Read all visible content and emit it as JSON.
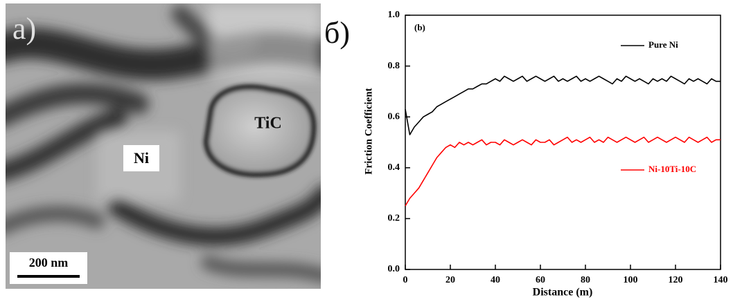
{
  "image_panel": {
    "label": "а)",
    "phase_labels": [
      "Ni",
      "TiC"
    ],
    "scale_bar": "200 nm"
  },
  "chart_panel_label": "б)",
  "chart_data": {
    "type": "line",
    "annotation": "(b)",
    "xlabel": "Distance (m)",
    "ylabel": "Friction Coefficient",
    "xlim": [
      0,
      140
    ],
    "xticks": [
      0,
      20,
      40,
      60,
      80,
      100,
      120,
      140
    ],
    "ylim": [
      0,
      1
    ],
    "yticks": [
      {
        "value": 0,
        "label": "0.0"
      },
      0.2,
      0.4,
      0.6,
      0.8,
      {
        "value": 1,
        "label": "1.0"
      }
    ],
    "x": [
      0,
      2,
      4,
      6,
      8,
      10,
      12,
      14,
      16,
      18,
      20,
      22,
      24,
      26,
      28,
      30,
      32,
      34,
      36,
      38,
      40,
      42,
      44,
      46,
      48,
      50,
      52,
      54,
      56,
      58,
      60,
      62,
      64,
      66,
      68,
      70,
      72,
      74,
      76,
      78,
      80,
      82,
      84,
      86,
      88,
      90,
      92,
      94,
      96,
      98,
      100,
      102,
      104,
      106,
      108,
      110,
      112,
      114,
      116,
      118,
      120,
      122,
      124,
      126,
      128,
      130,
      132,
      134,
      136,
      138,
      140
    ],
    "series": [
      {
        "name": "Pure Ni",
        "color": "#000000",
        "values": [
          0.63,
          0.53,
          0.56,
          0.58,
          0.6,
          0.61,
          0.62,
          0.64,
          0.65,
          0.66,
          0.67,
          0.68,
          0.69,
          0.7,
          0.71,
          0.71,
          0.72,
          0.73,
          0.73,
          0.74,
          0.75,
          0.74,
          0.76,
          0.75,
          0.74,
          0.75,
          0.76,
          0.74,
          0.75,
          0.76,
          0.75,
          0.74,
          0.75,
          0.76,
          0.74,
          0.75,
          0.74,
          0.75,
          0.76,
          0.74,
          0.75,
          0.74,
          0.75,
          0.76,
          0.75,
          0.74,
          0.73,
          0.75,
          0.74,
          0.76,
          0.75,
          0.74,
          0.75,
          0.74,
          0.73,
          0.75,
          0.74,
          0.75,
          0.74,
          0.76,
          0.75,
          0.74,
          0.73,
          0.75,
          0.74,
          0.75,
          0.74,
          0.73,
          0.75,
          0.74,
          0.74
        ]
      },
      {
        "name": "Ni-10Ti-10C",
        "color": "#ff0000",
        "values": [
          0.25,
          0.28,
          0.3,
          0.32,
          0.35,
          0.38,
          0.41,
          0.44,
          0.46,
          0.48,
          0.49,
          0.48,
          0.5,
          0.49,
          0.5,
          0.49,
          0.5,
          0.51,
          0.49,
          0.5,
          0.5,
          0.49,
          0.51,
          0.5,
          0.49,
          0.5,
          0.51,
          0.5,
          0.49,
          0.51,
          0.5,
          0.5,
          0.51,
          0.49,
          0.5,
          0.51,
          0.52,
          0.5,
          0.51,
          0.5,
          0.51,
          0.52,
          0.5,
          0.51,
          0.5,
          0.52,
          0.51,
          0.5,
          0.51,
          0.52,
          0.51,
          0.5,
          0.51,
          0.52,
          0.5,
          0.51,
          0.52,
          0.51,
          0.5,
          0.51,
          0.52,
          0.51,
          0.5,
          0.52,
          0.51,
          0.5,
          0.51,
          0.52,
          0.5,
          0.51,
          0.51
        ]
      }
    ]
  }
}
